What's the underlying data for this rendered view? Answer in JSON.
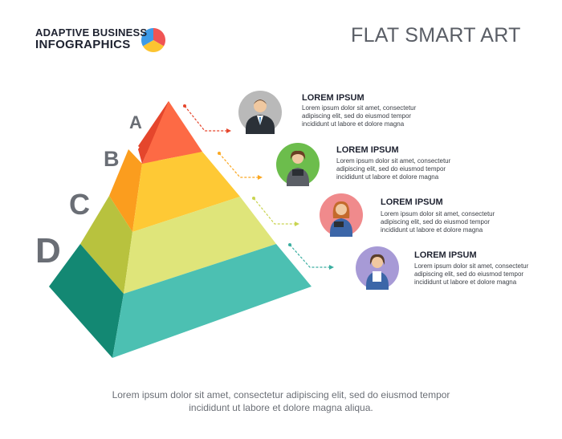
{
  "brand": {
    "line1": "ADAPTIVE BUSINESS",
    "line2": "INFOGRAPHICS"
  },
  "title": "FLAT SMART ART",
  "levels": [
    {
      "letter": "A",
      "title": "LOREM IPSUM",
      "body": "Lorem ipsum dolor sit amet, consectetur adipiscing elit, sed do eiusmod tempor incididunt ut labore et dolore magna",
      "front": "#fd6a45",
      "side": "#e5462c",
      "avatar_bg": "#b9b9b9"
    },
    {
      "letter": "B",
      "title": "LOREM IPSUM",
      "body": "Lorem ipsum dolor sit amet, consectetur adipiscing elit, sed do eiusmod tempor incididunt ut labore et dolore magna",
      "front": "#fec935",
      "side": "#fb9d1e",
      "avatar_bg": "#6cbd4c"
    },
    {
      "letter": "C",
      "title": "LOREM IPSUM",
      "body": "Lorem ipsum dolor sit amet, consectetur adipiscing elit, sed do eiusmod tempor incididunt ut labore et dolore magna",
      "front": "#dfe57a",
      "side": "#b8c23e",
      "avatar_bg": "#f08a8c"
    },
    {
      "letter": "D",
      "title": "LOREM IPSUM",
      "body": "Lorem ipsum dolor sit amet, consectetur adipiscing elit, sed do eiusmod tempor incididunt ut labore et dolore magna",
      "front": "#4cc0b2",
      "side": "#138873",
      "avatar_bg": "#a79ad6"
    }
  ],
  "footer": {
    "line1": "Lorem ipsum dolor sit amet, consectetur adipiscing elit, sed do eiusmod tempor",
    "line2": "incididunt ut labore et dolore magna aliqua."
  }
}
